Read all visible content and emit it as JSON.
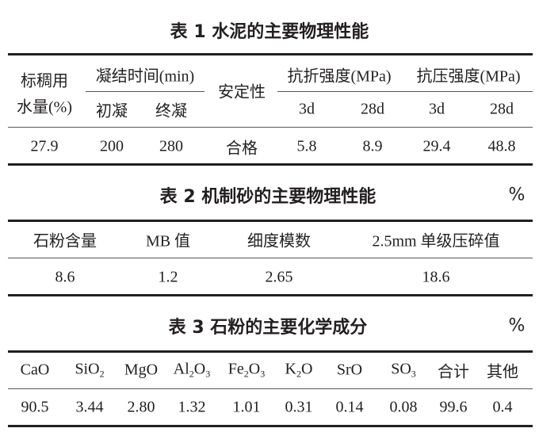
{
  "table1": {
    "title": "表 1  水泥的主要物理性能",
    "headers": {
      "water": [
        "标稠用",
        "水量(%)"
      ],
      "setting_time": "凝结时间(min)",
      "initial": "初凝",
      "final": "终凝",
      "soundness": "安定性",
      "flexural": "抗折强度(MPa)",
      "compressive": "抗压强度(MPa)",
      "flex_3d": "3d",
      "flex_28d": "28d",
      "comp_3d": "3d",
      "comp_28d": "28d"
    },
    "row": [
      "27.9",
      "200",
      "280",
      "合格",
      "5.8",
      "8.9",
      "29.4",
      "48.8"
    ]
  },
  "table2": {
    "title": "表 2  机制砂的主要物理性能",
    "unit": "%",
    "headers": [
      "石粉含量",
      "MB 值",
      "细度模数",
      "2.5mm 单级压碎值"
    ],
    "row": [
      "8.6",
      "1.2",
      "2.65",
      "18.6"
    ]
  },
  "table3": {
    "title": "表 3  石粉的主要化学成分",
    "unit": "%",
    "headers": [
      [
        {
          "t": "CaO"
        }
      ],
      [
        {
          "t": "SiO"
        },
        {
          "s": "2"
        }
      ],
      [
        {
          "t": "MgO"
        }
      ],
      [
        {
          "t": "Al"
        },
        {
          "s": "2"
        },
        {
          "t": "O"
        },
        {
          "s": "3"
        }
      ],
      [
        {
          "t": "Fe"
        },
        {
          "s": "2"
        },
        {
          "t": "O"
        },
        {
          "s": "3"
        }
      ],
      [
        {
          "t": "K"
        },
        {
          "s": "2"
        },
        {
          "t": "O"
        }
      ],
      [
        {
          "t": "SrO"
        }
      ],
      [
        {
          "t": "SO"
        },
        {
          "s": "3"
        }
      ],
      [
        {
          "t": "合计"
        }
      ],
      [
        {
          "t": "其他"
        }
      ]
    ],
    "row": [
      "90.5",
      "3.44",
      "2.80",
      "1.32",
      "1.01",
      "0.31",
      "0.14",
      "0.08",
      "99.6",
      "0.4"
    ]
  }
}
